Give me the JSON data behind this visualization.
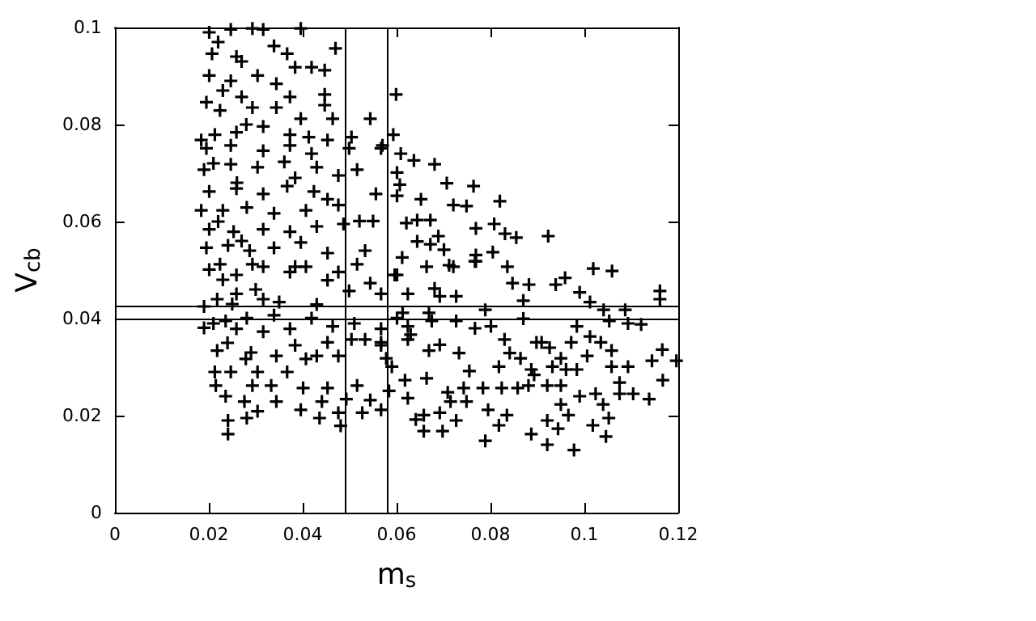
{
  "chart_data": {
    "type": "scatter",
    "xlabel": "m$_{s}$",
    "ylabel": "V$_{cb}$",
    "xlim": [
      0,
      0.12
    ],
    "ylim": [
      0,
      0.1
    ],
    "xticks": [
      0,
      0.02,
      0.04,
      0.06,
      0.08,
      0.1,
      0.12
    ],
    "yticks": [
      0,
      0.02,
      0.04,
      0.06,
      0.08,
      0.1
    ],
    "grid": false,
    "marker": "cross",
    "series": [
      {
        "color": "#000000",
        "x": [
          0.1019,
          0.1059,
          0.1161,
          0.1161,
          0.0847,
          0.0882,
          0.0939,
          0.0959,
          0.099,
          0.087,
          0.1012,
          0.1041,
          0.1087,
          0.0984,
          0.1053,
          0.1093,
          0.1121,
          0.0789,
          0.0767,
          0.0801,
          0.087,
          0.0909,
          0.0926,
          0.0972,
          0.1012,
          0.1035,
          0.1058,
          0.1166,
          0.1196,
          0.1144,
          0.1058,
          0.1093,
          0.095,
          0.0961,
          0.0984,
          0.1006,
          0.0932,
          0.0887,
          0.0893,
          0.0881,
          0.0921,
          0.095,
          0.099,
          0.1024,
          0.1075,
          0.1104,
          0.1138,
          0.1167,
          0.1075,
          0.104,
          0.1052,
          0.1046,
          0.1018,
          0.095,
          0.0966,
          0.0921,
          0.0944,
          0.0887,
          0.0921,
          0.0978,
          0.0789,
          0.0818,
          0.0835,
          0.0795,
          0.0749,
          0.0715,
          0.0692,
          0.0727,
          0.0658,
          0.0641,
          0.0658,
          0.0698,
          0.0743,
          0.0784,
          0.0824,
          0.0858,
          0.0818,
          0.0755,
          0.0709,
          0.0664,
          0.0618,
          0.0624,
          0.0584,
          0.0567,
          0.0841,
          0.083,
          0.0898,
          0.0864,
          0.0733,
          0.0692,
          0.0669,
          0.0624,
          0.0578,
          0.0567,
          0.0727,
          0.0669,
          0.0675,
          0.0624,
          0.063,
          0.0601,
          0.0613,
          0.0692,
          0.0681,
          0.0727,
          0.0624,
          0.0601,
          0.0664,
          0.0721,
          0.0767,
          0.0836,
          0.0599,
          0.0593,
          0.057,
          0.0609,
          0.0637,
          0.0681,
          0.0601,
          0.0607,
          0.0707,
          0.0764,
          0.0601,
          0.0652,
          0.0721,
          0.0749,
          0.082,
          0.0621,
          0.0644,
          0.0672,
          0.0769,
          0.0808,
          0.0831,
          0.0855,
          0.0923,
          0.0689,
          0.0672,
          0.0644,
          0.0612,
          0.0701,
          0.0769,
          0.0805,
          0.0769,
          0.0712,
          0.019,
          0.0218,
          0.0213,
          0.0215,
          0.0247,
          0.0236,
          0.0241,
          0.0241,
          0.0281,
          0.0304,
          0.0276,
          0.0279,
          0.0304,
          0.0293,
          0.0333,
          0.0344,
          0.0344,
          0.0367,
          0.0396,
          0.0401,
          0.0436,
          0.0441,
          0.0476,
          0.0481,
          0.0493,
          0.0527,
          0.0544,
          0.0453,
          0.0516,
          0.0407,
          0.043,
          0.0476,
          0.0533,
          0.0504,
          0.0453,
          0.0384,
          0.0373,
          0.0316,
          0.0259,
          0.0236,
          0.0281,
          0.0339,
          0.0419,
          0.0464,
          0.051,
          0.0567,
          0.0567,
          0.059,
          0.019,
          0.0218,
          0.0259,
          0.0316,
          0.035,
          0.043,
          0.0499,
          0.0567,
          0.0596,
          0.0201,
          0.0259,
          0.0293,
          0.0373,
          0.0407,
          0.0453,
          0.0476,
          0.0544,
          0.0201,
          0.0247,
          0.0293,
          0.0316,
          0.0396,
          0.047,
          0.0339,
          0.0207,
          0.0259,
          0.0367,
          0.0384,
          0.0419,
          0.0447,
          0.0201,
          0.0247,
          0.0304,
          0.0373,
          0.0447,
          0.0344,
          0.0195,
          0.0224,
          0.027,
          0.0293,
          0.0344,
          0.0396,
          0.0447,
          0.0464,
          0.0184,
          0.0213,
          0.0259,
          0.0316,
          0.0373,
          0.0413,
          0.0504,
          0.0544,
          0.0453,
          0.0195,
          0.0247,
          0.0316,
          0.0373,
          0.0419,
          0.0499,
          0.0567,
          0.019,
          0.0247,
          0.0304,
          0.0361,
          0.0384,
          0.043,
          0.0476,
          0.0516,
          0.0201,
          0.0259,
          0.0316,
          0.0367,
          0.0424,
          0.0453,
          0.0556,
          0.0184,
          0.023,
          0.0281,
          0.0339,
          0.0407,
          0.0476,
          0.0521,
          0.0201,
          0.0253,
          0.0316,
          0.0373,
          0.043,
          0.0487,
          0.055,
          0.0195,
          0.0241,
          0.0287,
          0.0339,
          0.0396,
          0.0453,
          0.0533,
          0.0224,
          0.0316,
          0.0384,
          0.0516,
          0.022,
          0.027,
          0.023,
          0.028,
          0.021,
          0.026,
          0.022,
          0.027,
          0.023,
          0.03,
          0.025,
          0.021,
          0.024,
          0.029
        ],
        "values": [
          0.0503,
          0.0498,
          0.0457,
          0.044,
          0.0473,
          0.047,
          0.047,
          0.0484,
          0.0454,
          0.0437,
          0.0434,
          0.0418,
          0.0418,
          0.0384,
          0.0395,
          0.039,
          0.0388,
          0.0418,
          0.038,
          0.0384,
          0.04,
          0.0351,
          0.034,
          0.0351,
          0.0363,
          0.0351,
          0.0334,
          0.0336,
          0.0313,
          0.0313,
          0.0301,
          0.0301,
          0.0318,
          0.0295,
          0.0295,
          0.0323,
          0.0301,
          0.0295,
          0.0284,
          0.0262,
          0.0262,
          0.0262,
          0.024,
          0.0245,
          0.0245,
          0.0245,
          0.0234,
          0.0273,
          0.0268,
          0.0223,
          0.0195,
          0.0157,
          0.018,
          0.0223,
          0.0201,
          0.019,
          0.0173,
          0.0162,
          0.014,
          0.0129,
          0.0148,
          0.018,
          0.0201,
          0.0212,
          0.0229,
          0.0229,
          0.0206,
          0.019,
          0.0201,
          0.0192,
          0.0168,
          0.0168,
          0.0257,
          0.0257,
          0.0257,
          0.0257,
          0.0301,
          0.0292,
          0.0248,
          0.0277,
          0.0273,
          0.0236,
          0.0251,
          0.0212,
          0.0329,
          0.0357,
          0.0351,
          0.0318,
          0.0329,
          0.0346,
          0.0334,
          0.0357,
          0.0318,
          0.0351,
          0.0395,
          0.0412,
          0.0395,
          0.0384,
          0.0367,
          0.0401,
          0.0412,
          0.0446,
          0.0462,
          0.0446,
          0.0451,
          0.049,
          0.0507,
          0.0507,
          0.0518,
          0.0507,
          0.0862,
          0.0779,
          0.0757,
          0.074,
          0.0726,
          0.0718,
          0.0701,
          0.0676,
          0.0679,
          0.0673,
          0.0653,
          0.0646,
          0.0634,
          0.0632,
          0.0642,
          0.0597,
          0.0603,
          0.0603,
          0.0586,
          0.0595,
          0.0575,
          0.0567,
          0.057,
          0.057,
          0.0553,
          0.0559,
          0.0526,
          0.0542,
          0.0531,
          0.0537,
          0.0518,
          0.051,
          0.0381,
          0.0334,
          0.029,
          0.0262,
          0.029,
          0.024,
          0.019,
          0.0162,
          0.0195,
          0.0209,
          0.0229,
          0.0317,
          0.029,
          0.0262,
          0.0262,
          0.0229,
          0.0323,
          0.029,
          0.0212,
          0.0257,
          0.0195,
          0.0229,
          0.0206,
          0.0179,
          0.0234,
          0.0206,
          0.0232,
          0.0257,
          0.0262,
          0.0317,
          0.0323,
          0.0323,
          0.0357,
          0.0357,
          0.0351,
          0.0345,
          0.0379,
          0.0373,
          0.0379,
          0.0395,
          0.0401,
          0.0407,
          0.0401,
          0.0384,
          0.039,
          0.0379,
          0.0345,
          0.0301,
          0.0425,
          0.044,
          0.0451,
          0.044,
          0.0434,
          0.0429,
          0.0457,
          0.0451,
          0.049,
          0.0501,
          0.049,
          0.0512,
          0.0496,
          0.0507,
          0.0479,
          0.0496,
          0.0473,
          0.099,
          0.0996,
          0.0998,
          0.0996,
          0.0998,
          0.0957,
          0.0962,
          0.0946,
          0.094,
          0.0946,
          0.0918,
          0.0918,
          0.0912,
          0.0901,
          0.089,
          0.0901,
          0.0857,
          0.0862,
          0.0884,
          0.0846,
          0.0829,
          0.0857,
          0.0835,
          0.0835,
          0.0812,
          0.084,
          0.0812,
          0.0768,
          0.0779,
          0.0784,
          0.0796,
          0.0779,
          0.0774,
          0.0774,
          0.0812,
          0.0768,
          0.0751,
          0.0757,
          0.0746,
          0.0757,
          0.074,
          0.0751,
          0.0751,
          0.0707,
          0.0718,
          0.0712,
          0.0723,
          0.069,
          0.0712,
          0.0695,
          0.0707,
          0.0662,
          0.0668,
          0.0657,
          0.0673,
          0.0662,
          0.0646,
          0.0657,
          0.0623,
          0.0623,
          0.0629,
          0.0617,
          0.0623,
          0.0634,
          0.0601,
          0.0584,
          0.0579,
          0.0584,
          0.0579,
          0.059,
          0.0595,
          0.0601,
          0.0546,
          0.0551,
          0.054,
          0.0546,
          0.0557,
          0.0535,
          0.054,
          0.0512,
          0.0507,
          0.0507,
          0.0512,
          0.097,
          0.093,
          0.087,
          0.08,
          0.072,
          0.068,
          0.06,
          0.056,
          0.048,
          0.046,
          0.043,
          0.039,
          0.035,
          0.033
        ]
      }
    ],
    "ref_lines": [
      {
        "axis": "x",
        "value": 0.049,
        "color": "#000000"
      },
      {
        "axis": "x",
        "value": 0.058,
        "color": "#000000"
      },
      {
        "axis": "y",
        "value": 0.0427,
        "color": "#000000"
      },
      {
        "axis": "y",
        "value": 0.04,
        "color": "#000000"
      }
    ]
  }
}
